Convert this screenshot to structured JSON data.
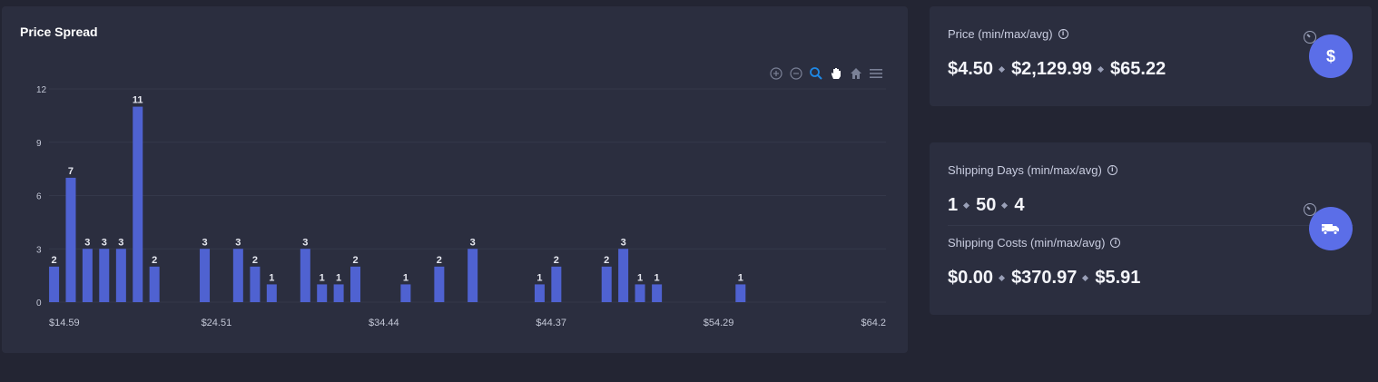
{
  "chart_title": "Price Spread",
  "chart_data": {
    "type": "bar",
    "title": "Price Spread",
    "xlabel": "",
    "ylabel": "",
    "ylim": [
      0,
      12
    ],
    "y_ticks": [
      "0",
      "3",
      "6",
      "9",
      "12"
    ],
    "x_ticks": [
      "$14.59",
      "$24.51",
      "$34.44",
      "$44.37",
      "$54.29",
      "$64.2"
    ],
    "grid": true,
    "bars": [
      {
        "x": 14.89,
        "value": 2
      },
      {
        "x": 15.88,
        "value": 7
      },
      {
        "x": 16.87,
        "value": 3
      },
      {
        "x": 17.86,
        "value": 3
      },
      {
        "x": 18.86,
        "value": 3
      },
      {
        "x": 19.85,
        "value": 11
      },
      {
        "x": 20.84,
        "value": 2
      },
      {
        "x": 23.82,
        "value": 3
      },
      {
        "x": 25.8,
        "value": 3
      },
      {
        "x": 26.8,
        "value": 2
      },
      {
        "x": 27.79,
        "value": 1
      },
      {
        "x": 29.78,
        "value": 3
      },
      {
        "x": 30.77,
        "value": 1
      },
      {
        "x": 31.76,
        "value": 1
      },
      {
        "x": 32.75,
        "value": 2
      },
      {
        "x": 35.73,
        "value": 1
      },
      {
        "x": 37.72,
        "value": 2
      },
      {
        "x": 39.7,
        "value": 3
      },
      {
        "x": 43.67,
        "value": 1
      },
      {
        "x": 44.66,
        "value": 2
      },
      {
        "x": 47.64,
        "value": 2
      },
      {
        "x": 48.63,
        "value": 3
      },
      {
        "x": 49.62,
        "value": 1
      },
      {
        "x": 50.62,
        "value": 1
      },
      {
        "x": 55.58,
        "value": 1
      }
    ],
    "x_domain": [
      14.59,
      64.2
    ],
    "bar_color": "#4f62d1"
  },
  "toolbar": {
    "icons": [
      "zoom-in-icon",
      "zoom-out-icon",
      "zoom-select-icon",
      "pan-icon",
      "reset-home-icon",
      "menu-icon"
    ]
  },
  "price": {
    "label": "Price (min/max/avg)",
    "min": "$4.50",
    "max": "$2,129.99",
    "avg": "$65.22",
    "icon": "dollar-icon"
  },
  "shipping_days": {
    "label": "Shipping Days (min/max/avg)",
    "min": "1",
    "max": "50",
    "avg": "4"
  },
  "shipping_costs": {
    "label": "Shipping Costs (min/max/avg)",
    "min": "$0.00",
    "max": "$370.97",
    "avg": "$5.91",
    "icon": "truck-icon"
  },
  "colors": {
    "background": "#232533",
    "card": "#2b2e3f",
    "accent": "#5b6ee8",
    "bar": "#4f62d1",
    "zoom_active": "#1e88e5"
  }
}
